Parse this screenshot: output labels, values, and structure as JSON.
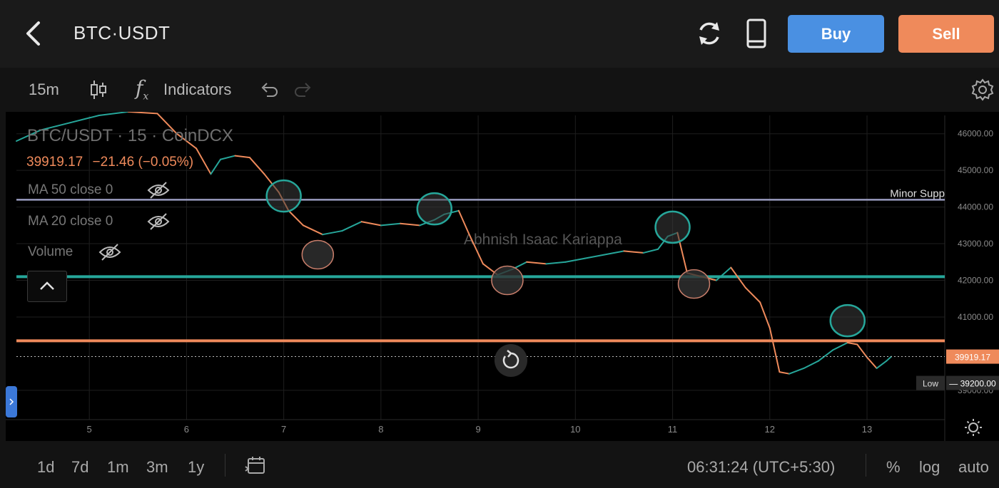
{
  "header": {
    "pair": "BTC·USDT",
    "buy_label": "Buy",
    "sell_label": "Sell",
    "icons": [
      "back-icon",
      "refresh-icon",
      "phone-icon"
    ]
  },
  "toolbar": {
    "interval": "15m",
    "indicators_label": "Indicators",
    "icons": [
      "candles-icon",
      "fx-icon",
      "undo-icon",
      "redo-icon",
      "settings-icon"
    ]
  },
  "legend": {
    "title": "BTC/USDT · 15 · CoinDCX",
    "price": "39919.17",
    "change": "−21.46 (−0.05%)",
    "studies": [
      "MA 50 close 0",
      "MA 20 close 0",
      "Volume"
    ]
  },
  "watermark": "Abhnish Isaac Kariappa",
  "annotation_text": "Minor Supp",
  "colors": {
    "up": "#26a69a",
    "down": "#ef8a5b",
    "support_line": "#26a69a",
    "resistance_line": "#ef8a5b",
    "minor_line": "#9a9cc0",
    "buy": "#4a90e2",
    "sell": "#ef8a5b"
  },
  "chart_data": {
    "type": "line",
    "x_ticks": [
      "5",
      "6",
      "7",
      "8",
      "9",
      "10",
      "11",
      "12",
      "13"
    ],
    "y_ticks": [
      "46000.00",
      "45000.00",
      "44000.00",
      "43000.00",
      "42000.00",
      "41000.00",
      "39000.00"
    ],
    "ylim": [
      38200,
      46500
    ],
    "xlim": [
      4.25,
      13.8
    ],
    "series": [
      {
        "x": [
          4.25,
          4.5,
          4.8,
          5.1,
          5.4,
          5.7,
          5.9,
          6.1,
          6.25,
          6.35,
          6.5,
          6.65,
          6.8,
          6.95,
          7.05,
          7.2,
          7.4,
          7.6,
          7.8,
          8.0,
          8.2,
          8.4,
          8.55,
          8.65,
          8.8,
          8.9,
          9.05,
          9.2,
          9.35,
          9.5,
          9.7,
          9.9,
          10.1,
          10.3,
          10.5,
          10.7,
          10.85,
          10.95,
          11.05,
          11.15,
          11.3,
          11.45,
          11.6,
          11.75,
          11.9,
          12.0,
          12.1,
          12.2,
          12.35,
          12.5,
          12.65,
          12.8,
          12.9,
          13.0,
          13.1,
          13.2,
          13.25
        ],
        "values": [
          45800,
          46100,
          46300,
          46500,
          46600,
          46550,
          46000,
          45600,
          44900,
          45300,
          45400,
          45350,
          44900,
          44400,
          43900,
          43500,
          43250,
          43350,
          43600,
          43500,
          43550,
          43500,
          43650,
          43800,
          43900,
          43300,
          42450,
          42150,
          42300,
          42500,
          42450,
          42500,
          42600,
          42700,
          42800,
          42750,
          42850,
          43200,
          43300,
          42200,
          42100,
          42000,
          42350,
          41800,
          41400,
          40700,
          39500,
          39450,
          39600,
          39800,
          40100,
          40300,
          40250,
          39900,
          39600,
          39800,
          39920
        ]
      }
    ],
    "horizontal_lines": [
      {
        "value": 44200,
        "label": "Minor Supp"
      },
      {
        "value": 42100
      },
      {
        "value": 40350
      }
    ],
    "current_price": "39919.17",
    "low_label": "Low",
    "low_value": "39200.00",
    "highlight_circles": [
      {
        "x": 7.0,
        "y": 44300,
        "kind": "up"
      },
      {
        "x": 7.35,
        "y": 42700,
        "kind": "down"
      },
      {
        "x": 8.55,
        "y": 43950,
        "kind": "up"
      },
      {
        "x": 9.3,
        "y": 42000,
        "kind": "down"
      },
      {
        "x": 11.0,
        "y": 43450,
        "kind": "up"
      },
      {
        "x": 11.22,
        "y": 41900,
        "kind": "down"
      },
      {
        "x": 12.8,
        "y": 40900,
        "kind": "up"
      }
    ]
  },
  "footer": {
    "ranges": [
      "1d",
      "7d",
      "1m",
      "3m",
      "1y"
    ],
    "time": "06:31:24 (UTC+5:30)",
    "percent_label": "%",
    "log_label": "log",
    "auto_label": "auto"
  }
}
